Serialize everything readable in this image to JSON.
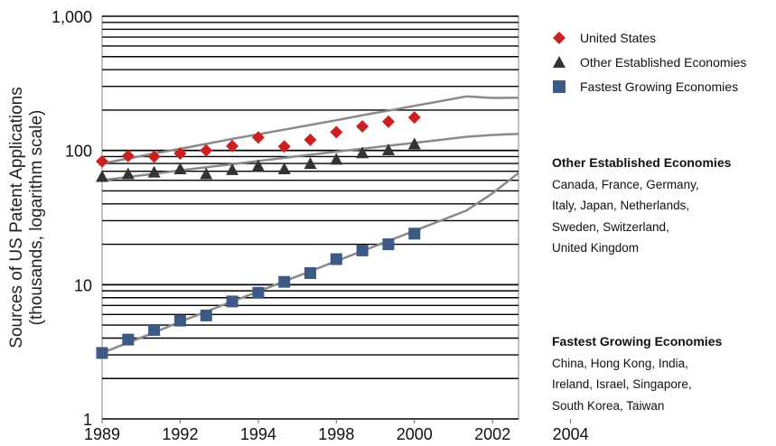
{
  "chart_data": {
    "type": "scatter",
    "title": "",
    "xlabel": "",
    "ylabel": "Sources of US Patent Applications",
    "ylabel_sub": "(thousands, logarithm scale)",
    "x_tick_labels": [
      "1989",
      "1992",
      "1994",
      "1998",
      "2000",
      "2002",
      "2004"
    ],
    "x_point_count": 17,
    "x_tick_step": 3,
    "y_scale": "log",
    "ylim": [
      1,
      1000
    ],
    "y_tick_labels": [
      "1",
      "10",
      "100",
      "1,000"
    ],
    "y_tick_values": [
      1,
      10,
      100,
      1000
    ],
    "grid": true,
    "legend_position": "right",
    "series": [
      {
        "name": "United States",
        "marker": "diamond",
        "color": "#cc2020",
        "values": [
          83,
          91,
          90,
          95,
          100,
          108,
          125,
          107,
          120,
          137,
          151,
          164,
          176
        ],
        "trend_values": [
          80,
          87,
          95,
          103,
          112,
          122,
          132,
          143,
          155,
          168,
          183,
          198,
          215,
          233,
          253,
          246,
          247
        ]
      },
      {
        "name": "Other Established Economies",
        "marker": "triangle",
        "color": "#333333",
        "values": [
          64,
          67,
          69,
          73,
          67,
          72,
          77,
          73,
          80,
          86,
          96,
          101,
          112
        ],
        "trend_values": [
          60,
          63.5,
          67,
          71,
          75,
          79,
          83.5,
          88,
          93,
          98,
          103,
          108.5,
          114,
          120,
          126.5,
          130.5,
          133
        ]
      },
      {
        "name": "Fastest Growing Economies",
        "marker": "square",
        "color": "#3c5a84",
        "values": [
          3.1,
          3.9,
          4.6,
          5.4,
          5.9,
          7.5,
          8.7,
          10.5,
          12.2,
          15.5,
          18,
          20,
          24
        ],
        "trend_values": [
          3.1,
          3.7,
          4.4,
          5.3,
          6.3,
          7.5,
          8.9,
          10.6,
          12.6,
          15,
          17.8,
          21.2,
          25.2,
          30,
          35.7,
          48,
          68
        ]
      }
    ]
  },
  "legend": [
    {
      "label": "United States",
      "marker": "diamond",
      "color": "#cc2020"
    },
    {
      "label": "Other Established Economies",
      "marker": "triangle",
      "color": "#333333"
    },
    {
      "label": "Fastest Growing Economies",
      "marker": "square",
      "color": "#3c5a84"
    }
  ],
  "groups": [
    {
      "title": "Other Established Economies",
      "lines": [
        "Canada, France, Germany,",
        "Italy, Japan, Netherlands,",
        "Sweden, Switzerland,",
        "United Kingdom"
      ]
    },
    {
      "title": "Fastest Growing Economies",
      "lines": [
        "China, Hong Kong, India,",
        "Ireland, Israel, Singapore,",
        "South Korea, Taiwan"
      ]
    }
  ]
}
